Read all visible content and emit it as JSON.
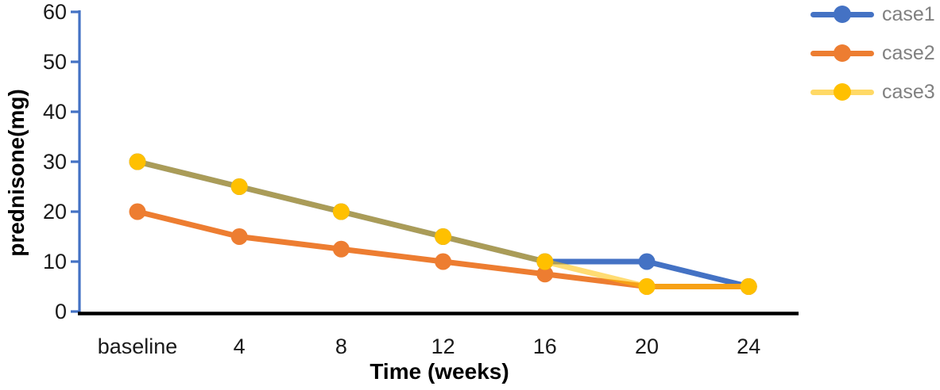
{
  "chart_data": {
    "type": "line",
    "title": "",
    "xlabel": "Time (weeks)",
    "ylabel": "prednisone(mg)",
    "categories": [
      "baseline",
      "4",
      "8",
      "12",
      "16",
      "20",
      "24"
    ],
    "series": [
      {
        "name": "case1",
        "color": "#4472C4",
        "marker_color": "#4472C4",
        "line_alpha": 1,
        "values": [
          30,
          25,
          20,
          15,
          10,
          10,
          5
        ]
      },
      {
        "name": "case2",
        "color": "#ED7D31",
        "marker_color": "#ED7D31",
        "line_alpha": 1,
        "values": [
          20,
          15,
          12.5,
          10,
          7.5,
          5,
          5
        ]
      },
      {
        "name": "case3",
        "color": "#FFC000",
        "marker_color": "#FFC000",
        "line_alpha": 0.55,
        "legend_line_color": "#FFD966",
        "values": [
          30,
          25,
          20,
          15,
          10,
          5,
          5
        ]
      }
    ],
    "y_ticks": [
      0,
      10,
      20,
      30,
      40,
      50,
      60
    ],
    "ylim": [
      0,
      60
    ],
    "grid": false,
    "legend_position": "top-right",
    "legend_text_color": "#808080",
    "axis_colors": {
      "y_axis": "#4472C4",
      "x_axis": "#000000"
    },
    "tick_label_color": "#1a1a1a",
    "axis_title_color": "#000000"
  }
}
